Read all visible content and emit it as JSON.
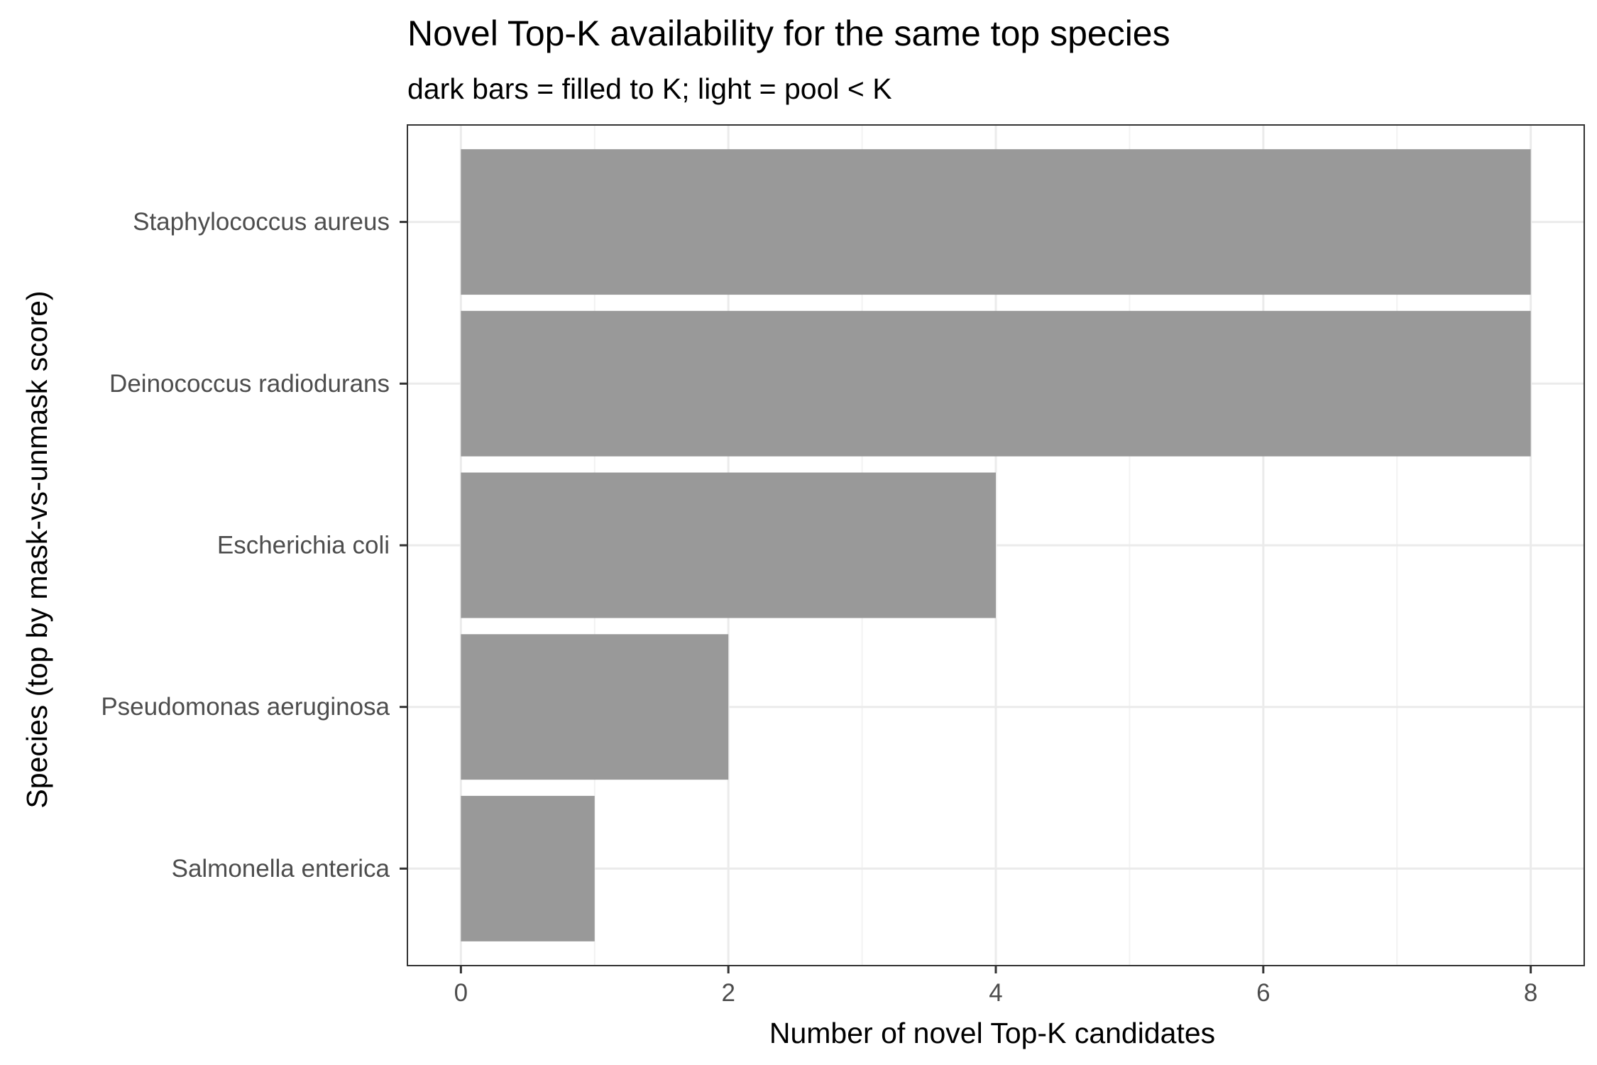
{
  "chart_data": {
    "type": "bar",
    "orientation": "horizontal",
    "title": "Novel Top-K availability for the same top species",
    "subtitle": "dark bars = filled to K; light = pool < K",
    "xlabel": "Number of novel Top-K candidates",
    "ylabel": "Species (top by mask-vs-unmask score)",
    "categories": [
      "Staphylococcus aureus",
      "Deinococcus radiodurans",
      "Escherichia coli",
      "Pseudomonas aeruginosa",
      "Salmonella enterica"
    ],
    "values": [
      8,
      8,
      4,
      2,
      1
    ],
    "xlim": [
      -0.4,
      8.4
    ],
    "xticks": [
      0,
      2,
      4,
      6,
      8
    ],
    "xtick_labels": [
      "0",
      "2",
      "4",
      "6",
      "8"
    ],
    "grid": true,
    "colors": {
      "bar": "#999999",
      "grid_major": "#ebebeb",
      "grid_minor": "#f2f2f2",
      "panel_border": "#333333",
      "tick_label": "#4d4d4d",
      "text": "#000000"
    }
  }
}
